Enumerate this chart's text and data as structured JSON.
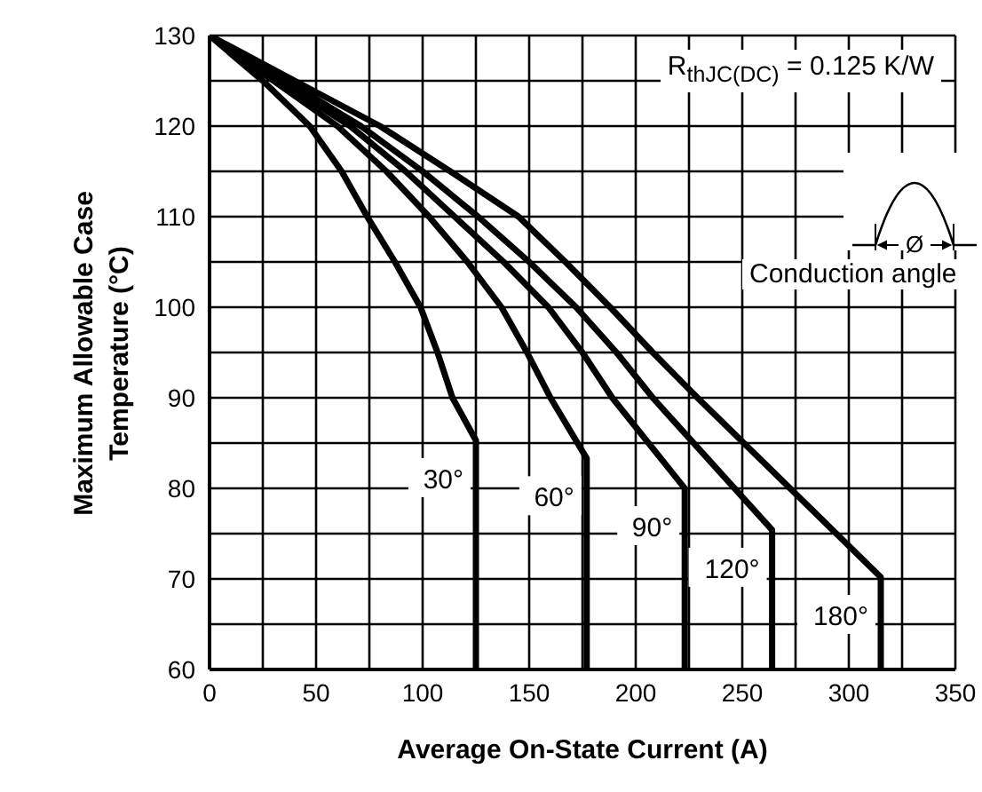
{
  "chart_data": {
    "type": "line",
    "xlabel": "Average On-State Current (A)",
    "ylabel": "Maximum Allowable Case Temperature (°C)",
    "xlim": [
      0,
      350
    ],
    "ylim": [
      60,
      130
    ],
    "xticks": [
      0,
      {
        "value": 25,
        "label": null
      },
      50,
      {
        "value": 75,
        "label": null
      },
      100,
      {
        "value": 125,
        "label": null
      },
      150,
      {
        "value": 175,
        "label": null
      },
      200,
      {
        "value": 225,
        "label": null
      },
      250,
      {
        "value": 275,
        "label": null
      },
      300,
      {
        "value": 325,
        "label": null
      },
      350
    ],
    "yticks": [
      60,
      {
        "value": 65,
        "label": null
      },
      70,
      {
        "value": 75,
        "label": null
      },
      80,
      {
        "value": 85,
        "label": null
      },
      90,
      {
        "value": 95,
        "label": null
      },
      100,
      {
        "value": 105,
        "label": null
      },
      110,
      {
        "value": 115,
        "label": null
      },
      120,
      {
        "value": 125,
        "label": null
      },
      130
    ],
    "grid": true,
    "marker": "none",
    "line_style": "solid",
    "annotations": [
      "R$_{thJC(DC)}$ = 0.125 K/W",
      "Ø",
      "Conduction angle"
    ],
    "series": [
      {
        "name": "30°",
        "color": "#000000",
        "x": [
          0,
          25,
          47,
          62,
          74,
          87,
          99,
          107,
          114,
          125,
          125
        ],
        "values": [
          130,
          125,
          120,
          115,
          110,
          105,
          100,
          95,
          90,
          85.3,
          60
        ]
      },
      {
        "name": "60°",
        "color": "#000000",
        "x": [
          0,
          30,
          60,
          83,
          103,
          121,
          137,
          149,
          160,
          177,
          177
        ],
        "values": [
          130,
          125,
          120,
          115,
          110,
          105,
          100,
          95,
          90,
          83.3,
          60
        ]
      },
      {
        "name": "90°",
        "color": "#000000",
        "x": [
          0,
          33,
          66,
          92,
          115,
          138,
          159,
          175,
          189,
          223,
          223
        ],
        "values": [
          130,
          125,
          120,
          115,
          110,
          105,
          100,
          95,
          90,
          80,
          60
        ]
      },
      {
        "name": "120°",
        "color": "#000000",
        "x": [
          0,
          36,
          71,
          100,
          126,
          150,
          172,
          191,
          208,
          264,
          264
        ],
        "values": [
          130,
          125,
          120,
          115,
          110,
          105,
          100,
          95,
          90,
          75.4,
          60
        ]
      },
      {
        "name": "180°",
        "color": "#000000",
        "x": [
          0,
          40,
          80,
          113,
          145,
          167,
          188,
          208,
          229,
          315,
          315
        ],
        "values": [
          130,
          125,
          120,
          115,
          110,
          105,
          100,
          95,
          90,
          70.2,
          60
        ]
      }
    ]
  }
}
